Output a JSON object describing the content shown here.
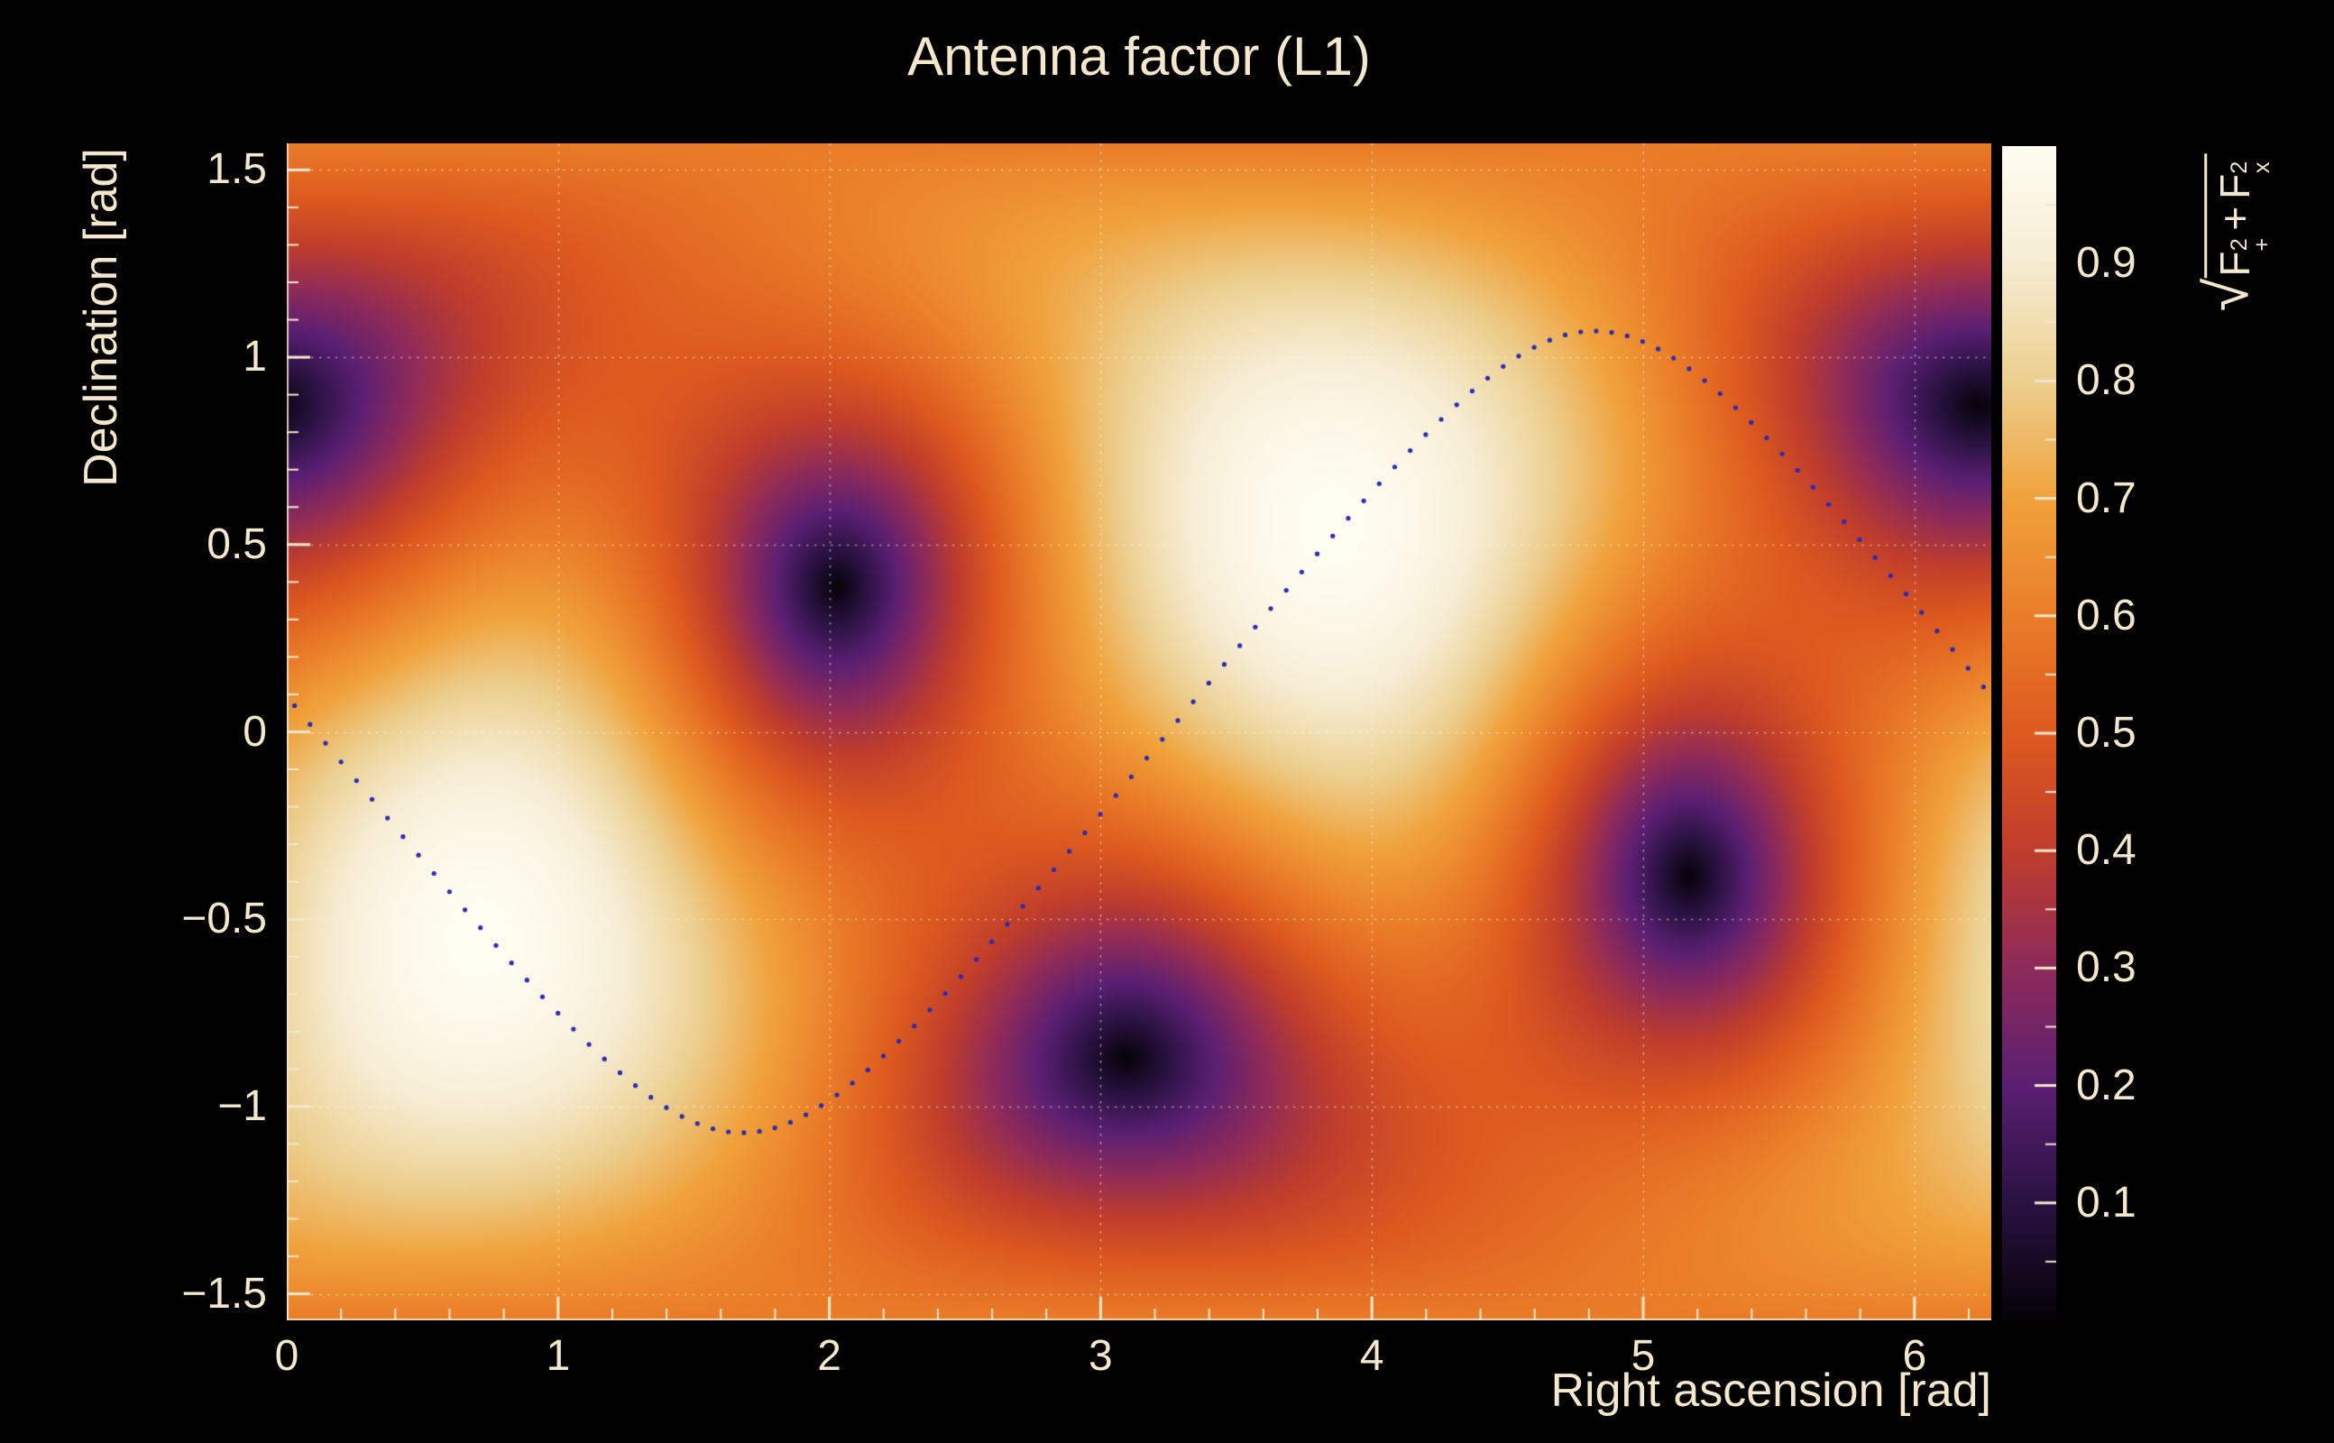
{
  "chart_data": {
    "type": "heatmap",
    "title": "Antenna factor (L1)",
    "xlabel": "Right ascension [rad]",
    "ylabel": "Declination [rad]",
    "zlabel": "sqrt(F+^2 + Fx^2)",
    "zlabel_parts": {
      "radical": "√",
      "f1": "F",
      "f1_sup": "2",
      "f1_sub": "+",
      "plus": "+",
      "f2": "F",
      "f2_sup": "2",
      "f2_sub": "x"
    },
    "xlim": [
      0,
      6.28319
    ],
    "ylim": [
      -1.5708,
      1.5708
    ],
    "zlim": [
      0,
      1
    ],
    "x_ticks": [
      0,
      1,
      2,
      3,
      4,
      5,
      6
    ],
    "x_tick_labels": [
      "0",
      "1",
      "2",
      "3",
      "4",
      "5",
      "6"
    ],
    "x_minor_step": 0.2,
    "y_ticks": [
      -1.5,
      -1,
      -0.5,
      0,
      0.5,
      1,
      1.5
    ],
    "y_tick_labels": [
      "−1.5",
      "−1",
      "−0.5",
      "0",
      "0.5",
      "1",
      "1.5"
    ],
    "y_minor_step": 0.1,
    "z_ticks": [
      0.1,
      0.2,
      0.3,
      0.4,
      0.5,
      0.6,
      0.7,
      0.8,
      0.9
    ],
    "z_tick_labels": [
      "0.1",
      "0.2",
      "0.3",
      "0.4",
      "0.5",
      "0.6",
      "0.7",
      "0.8",
      "0.9"
    ],
    "z_minor_step": 0.05,
    "grid": true,
    "pattern": {
      "model": "RMS antenna response sqrt(F+^2 + Fx^2) of an L-shaped interferometer (L1)",
      "formula": "sqrt(0.25*(1+cos(theta)^2)^2*cos(2*phi)^2 + cos(theta)^2*sin(2*phi)^2)",
      "zenith": {
        "ra": 3.85,
        "dec": 0.55
      },
      "nadir": {
        "ra": 0.71,
        "dec": -0.55
      },
      "null_reference": {
        "ra": 2.05,
        "dec": 0.4
      },
      "nulls": [
        {
          "ra": 2.05,
          "dec": 0.4
        },
        {
          "ra": 5.19,
          "dec": -0.4
        },
        {
          "ra": 3.09,
          "dec": -0.87
        },
        {
          "ra": 6.23,
          "dec": 0.87
        }
      ],
      "value_at_maxima": 1.0,
      "value_at_nulls": 0.0
    },
    "overlay_curve": {
      "style": "dotted",
      "color": "#2b2bb4",
      "model": "great circle: dec = asin(sin(inclination)*sin(ra - node_ra))",
      "inclination": 1.07,
      "node_ra": 3.25,
      "n_points": 110,
      "dot_radius": 2.6
    },
    "palette": [
      {
        "pos": 0.0,
        "color": "#050208"
      },
      {
        "pos": 0.1,
        "color": "#2a1242"
      },
      {
        "pos": 0.2,
        "color": "#5a1f72"
      },
      {
        "pos": 0.3,
        "color": "#8e2a5a"
      },
      {
        "pos": 0.4,
        "color": "#bf3d2c"
      },
      {
        "pos": 0.5,
        "color": "#dd5a1f"
      },
      {
        "pos": 0.6,
        "color": "#ea7d28"
      },
      {
        "pos": 0.7,
        "color": "#f0a23c"
      },
      {
        "pos": 0.8,
        "color": "#eccf8f"
      },
      {
        "pos": 0.9,
        "color": "#f6ecd2"
      },
      {
        "pos": 1.0,
        "color": "#fffdf2"
      }
    ]
  },
  "colors": {
    "background": "#000000",
    "text": "#f4e7cb",
    "tick": "#f4e7cb",
    "grid": "#fff6e4"
  }
}
